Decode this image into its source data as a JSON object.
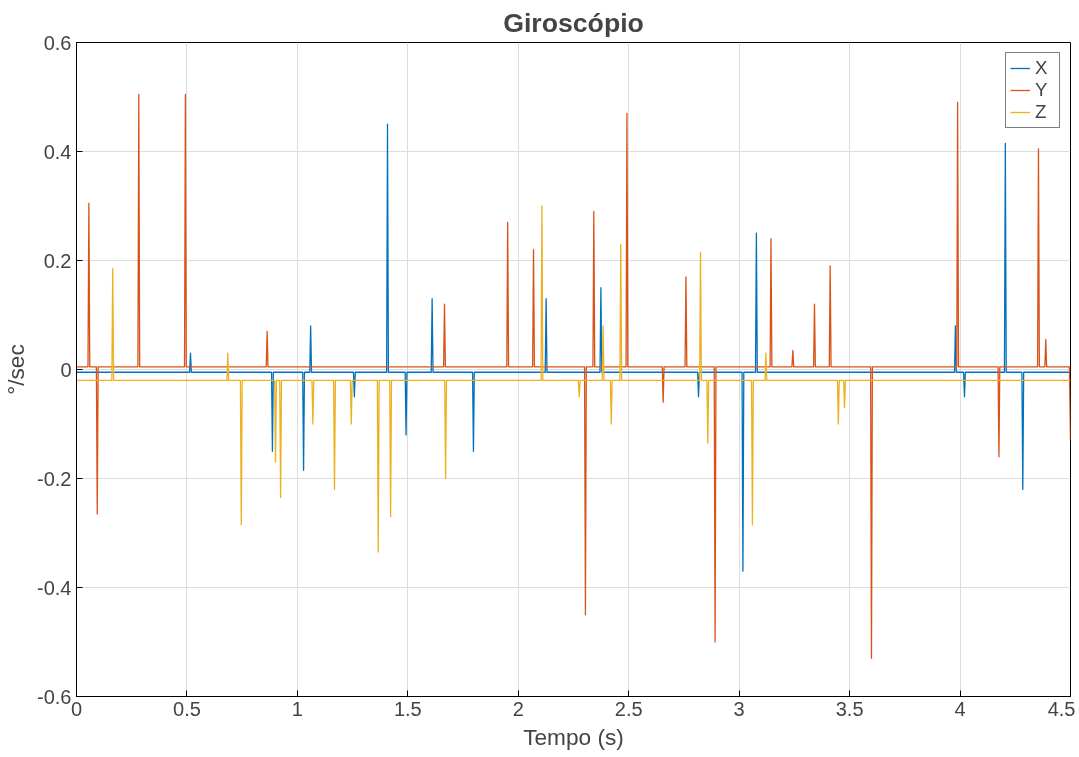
{
  "chart_data": {
    "type": "line",
    "title": "Giroscópio",
    "xlabel": "Tempo (s)",
    "ylabel": "°/sec",
    "xlim": [
      0,
      4.5
    ],
    "xticks": [
      0,
      0.5,
      1,
      1.5,
      2,
      2.5,
      3,
      3.5,
      4,
      4.5
    ],
    "ylim": [
      -0.6,
      0.6
    ],
    "yticks": [
      -0.6,
      -0.4,
      -0.2,
      0,
      0.2,
      0.4,
      0.6
    ],
    "grid": true,
    "legend": "top right",
    "line_style": "solid",
    "series": [
      {
        "name": "X",
        "color": "#0072bd",
        "x": [
          0,
          0.512,
          0.516,
          0.52,
          0.883,
          0.887,
          0.891,
          1.024,
          1.028,
          1.032,
          1.056,
          1.06,
          1.064,
          1.254,
          1.258,
          1.262,
          1.404,
          1.408,
          1.412,
          1.488,
          1.492,
          1.496,
          1.606,
          1.61,
          1.614,
          1.793,
          1.797,
          1.801,
          2.122,
          2.126,
          2.13,
          2.37,
          2.374,
          2.378,
          2.812,
          2.816,
          2.82,
          3.013,
          3.017,
          3.021,
          3.074,
          3.078,
          3.082,
          3.975,
          3.979,
          3.983,
          4.016,
          4.02,
          4.024,
          4.201,
          4.205,
          4.209,
          4.28,
          4.284,
          4.288,
          4.5
        ],
        "values": [
          -0.005,
          -0.005,
          0.03,
          -0.005,
          -0.005,
          -0.15,
          -0.005,
          -0.005,
          -0.185,
          -0.005,
          -0.005,
          0.08,
          -0.005,
          -0.005,
          -0.05,
          -0.005,
          -0.005,
          0.45,
          -0.005,
          -0.005,
          -0.12,
          -0.005,
          -0.005,
          0.13,
          -0.005,
          -0.005,
          -0.15,
          -0.005,
          -0.005,
          0.13,
          -0.005,
          -0.005,
          0.15,
          -0.005,
          -0.005,
          -0.05,
          -0.005,
          -0.005,
          -0.37,
          -0.005,
          -0.005,
          0.25,
          -0.005,
          -0.005,
          0.08,
          -0.005,
          -0.005,
          -0.05,
          -0.005,
          -0.005,
          0.415,
          -0.005,
          -0.005,
          -0.22,
          -0.005,
          -0.005
        ]
      },
      {
        "name": "Y",
        "color": "#d95319",
        "x": [
          0,
          0.052,
          0.056,
          0.06,
          0.09,
          0.094,
          0.098,
          0.278,
          0.282,
          0.286,
          0.489,
          0.493,
          0.497,
          0.859,
          0.863,
          0.867,
          1.662,
          1.666,
          1.67,
          1.948,
          1.952,
          1.956,
          2.065,
          2.069,
          2.073,
          2.3,
          2.304,
          2.308,
          2.338,
          2.342,
          2.346,
          2.488,
          2.492,
          2.496,
          2.652,
          2.656,
          2.66,
          2.755,
          2.759,
          2.763,
          2.887,
          2.891,
          2.895,
          3.14,
          3.144,
          3.148,
          3.239,
          3.243,
          3.247,
          3.337,
          3.341,
          3.345,
          3.408,
          3.412,
          3.416,
          3.595,
          3.599,
          3.603,
          3.985,
          3.989,
          3.993,
          4.172,
          4.176,
          4.18,
          4.351,
          4.355,
          4.359,
          4.384,
          4.388,
          4.392,
          4.495,
          4.5
        ],
        "values": [
          0.005,
          0.005,
          0.305,
          0.005,
          0.005,
          -0.265,
          0.005,
          0.005,
          0.505,
          0.005,
          0.005,
          0.505,
          0.005,
          0.005,
          0.07,
          0.005,
          0.005,
          0.12,
          0.005,
          0.005,
          0.27,
          0.005,
          0.005,
          0.22,
          0.005,
          0.005,
          -0.45,
          0.005,
          0.005,
          0.29,
          0.005,
          0.005,
          0.47,
          0.005,
          0.005,
          -0.06,
          0.005,
          0.005,
          0.17,
          0.005,
          0.005,
          -0.5,
          0.005,
          0.005,
          0.24,
          0.005,
          0.005,
          0.035,
          0.005,
          0.005,
          0.12,
          0.005,
          0.005,
          0.19,
          0.005,
          0.005,
          -0.53,
          0.005,
          0.005,
          0.49,
          0.005,
          0.005,
          -0.16,
          0.005,
          0.005,
          0.405,
          0.005,
          0.005,
          0.055,
          0.005,
          0.005,
          -0.13
        ]
      },
      {
        "name": "Z",
        "color": "#edb120",
        "x": [
          0,
          0.16,
          0.164,
          0.168,
          0.681,
          0.685,
          0.689,
          0.742,
          0.746,
          0.75,
          0.897,
          0.901,
          0.905,
          0.92,
          0.924,
          0.928,
          1.066,
          1.07,
          1.074,
          1.164,
          1.168,
          1.172,
          1.24,
          1.244,
          1.248,
          1.362,
          1.366,
          1.37,
          1.418,
          1.422,
          1.426,
          1.667,
          1.671,
          1.675,
          2.103,
          2.107,
          2.111,
          2.272,
          2.276,
          2.28,
          2.38,
          2.384,
          2.388,
          2.417,
          2.421,
          2.425,
          2.46,
          2.464,
          2.468,
          2.821,
          2.825,
          2.829,
          2.854,
          2.858,
          2.862,
          3.056,
          3.06,
          3.064,
          3.117,
          3.121,
          3.125,
          3.445,
          3.449,
          3.453,
          3.473,
          3.477,
          3.481,
          4.5
        ],
        "values": [
          -0.02,
          -0.02,
          0.185,
          -0.02,
          -0.02,
          0.03,
          -0.02,
          -0.02,
          -0.285,
          -0.02,
          -0.02,
          -0.17,
          -0.02,
          -0.02,
          -0.235,
          -0.02,
          -0.02,
          -0.1,
          -0.02,
          -0.02,
          -0.22,
          -0.02,
          -0.02,
          -0.1,
          -0.02,
          -0.02,
          -0.335,
          -0.02,
          -0.02,
          -0.27,
          -0.02,
          -0.02,
          -0.2,
          -0.02,
          -0.02,
          0.3,
          -0.02,
          -0.02,
          -0.05,
          -0.02,
          -0.02,
          0.08,
          -0.02,
          -0.02,
          -0.1,
          -0.02,
          -0.02,
          0.23,
          -0.02,
          -0.02,
          0.215,
          -0.02,
          -0.02,
          -0.135,
          -0.02,
          -0.02,
          -0.285,
          -0.02,
          -0.02,
          0.03,
          -0.02,
          -0.02,
          -0.1,
          -0.02,
          -0.02,
          -0.07,
          -0.02,
          -0.02
        ]
      }
    ]
  }
}
